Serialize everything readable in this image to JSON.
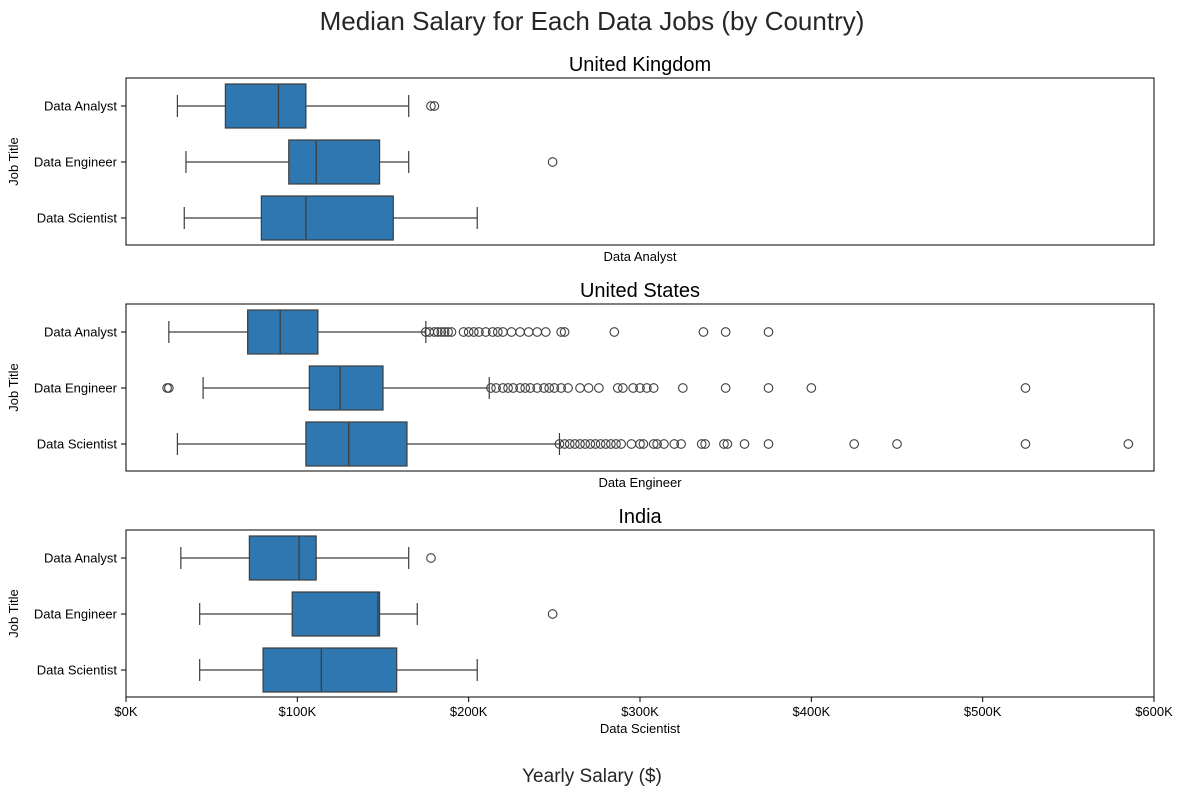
{
  "figure": {
    "title": "Median Salary for Each Data Jobs (by Country)",
    "xlabel": "Yearly Salary ($)"
  },
  "colors": {
    "box_fill": "#2f77b1",
    "box_edge": "#3d3d3d",
    "outlier": "#3d3d3d",
    "axis": "#000000",
    "background": "#ffffff"
  },
  "chart_data": [
    {
      "type": "box",
      "title": "United Kingdom",
      "ylabel": "Job Title",
      "xlabel": "Data Analyst",
      "show_xticks": false,
      "xlim": [
        0,
        600000
      ],
      "categories": [
        "Data Analyst",
        "Data Engineer",
        "Data Scientist"
      ],
      "boxes": [
        {
          "whisker_low": 30000,
          "q1": 58000,
          "median": 89000,
          "q3": 105000,
          "whisker_high": 165000,
          "outliers": [
            178000,
            180000
          ]
        },
        {
          "whisker_low": 35000,
          "q1": 95000,
          "median": 111000,
          "q3": 148000,
          "whisker_high": 165000,
          "outliers": [
            249000
          ]
        },
        {
          "whisker_low": 34000,
          "q1": 79000,
          "median": 105000,
          "q3": 156000,
          "whisker_high": 205000,
          "outliers": []
        }
      ]
    },
    {
      "type": "box",
      "title": "United States",
      "ylabel": "Job Title",
      "xlabel": "Data Engineer",
      "show_xticks": false,
      "xlim": [
        0,
        600000
      ],
      "categories": [
        "Data Analyst",
        "Data Engineer",
        "Data Scientist"
      ],
      "boxes": [
        {
          "whisker_low": 25000,
          "q1": 71000,
          "median": 90000,
          "q3": 112000,
          "whisker_high": 175000,
          "outliers": [
            175000,
            177000,
            180000,
            182000,
            184000,
            186000,
            188000,
            190000,
            197000,
            200000,
            203000,
            206000,
            210000,
            214000,
            217000,
            220000,
            225000,
            230000,
            235000,
            240000,
            245000,
            254000,
            256000,
            285000,
            337000,
            350000,
            375000
          ]
        },
        {
          "whisker_low": 45000,
          "q1": 107000,
          "median": 125000,
          "q3": 150000,
          "whisker_high": 212000,
          "outliers": [
            24000,
            25000,
            213000,
            216000,
            220000,
            223000,
            226000,
            230000,
            233000,
            236000,
            240000,
            244000,
            247000,
            250000,
            254000,
            258000,
            265000,
            270000,
            276000,
            287000,
            290000,
            296000,
            300000,
            304000,
            308000,
            325000,
            350000,
            375000,
            400000,
            525000
          ]
        },
        {
          "whisker_low": 30000,
          "q1": 105000,
          "median": 130000,
          "q3": 164000,
          "whisker_high": 253000,
          "outliers": [
            253000,
            256000,
            259000,
            262000,
            265000,
            268000,
            271000,
            274000,
            277000,
            280000,
            283000,
            286000,
            289000,
            295000,
            300000,
            302000,
            308000,
            310000,
            314000,
            320000,
            324000,
            336000,
            338000,
            349000,
            351000,
            361000,
            375000,
            425000,
            450000,
            525000,
            585000
          ]
        }
      ]
    },
    {
      "type": "box",
      "title": "India",
      "ylabel": "Job Title",
      "xlabel": "Data Scientist",
      "show_xticks": true,
      "xlim": [
        0,
        600000
      ],
      "xticks": [
        0,
        100000,
        200000,
        300000,
        400000,
        500000,
        600000
      ],
      "xtick_labels": [
        "$0K",
        "$100K",
        "$200K",
        "$300K",
        "$400K",
        "$500K",
        "$600K"
      ],
      "categories": [
        "Data Analyst",
        "Data Engineer",
        "Data Scientist"
      ],
      "boxes": [
        {
          "whisker_low": 32000,
          "q1": 72000,
          "median": 101000,
          "q3": 111000,
          "whisker_high": 165000,
          "outliers": [
            178000
          ]
        },
        {
          "whisker_low": 43000,
          "q1": 97000,
          "median": 147000,
          "q3": 148000,
          "whisker_high": 170000,
          "outliers": [
            249000
          ]
        },
        {
          "whisker_low": 43000,
          "q1": 80000,
          "median": 114000,
          "q3": 158000,
          "whisker_high": 205000,
          "outliers": []
        }
      ]
    }
  ]
}
